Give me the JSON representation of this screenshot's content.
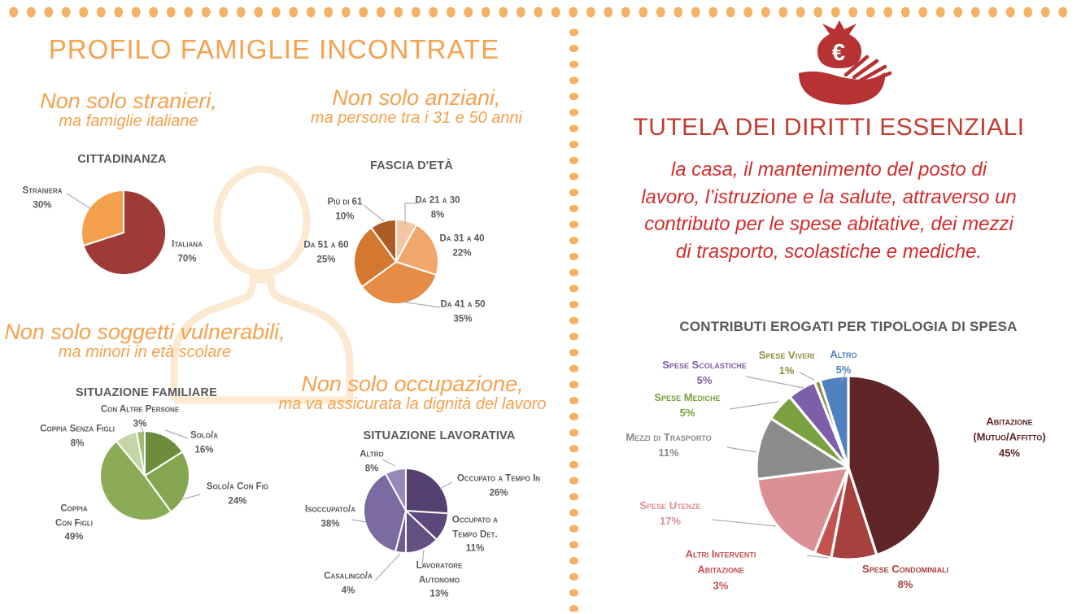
{
  "colors": {
    "orange": "#F5A14E",
    "dot": "#F4B267",
    "red-title": "#C23B30",
    "red-text": "#D22C2C",
    "icon-red": "#B73232",
    "chart-text": "#595959",
    "leader": "#ADADAD",
    "silhouette": "#FBE9D2"
  },
  "left": {
    "title": "PROFILO FAMIGLIE INCONTRATE",
    "annotations": [
      {
        "line1": "Non solo stranieri,",
        "line2": "ma famiglie italiane"
      },
      {
        "line1": "Non solo anziani,",
        "line2": "ma persone tra i 31 e 50 anni"
      },
      {
        "line1": "Non solo soggetti vulnerabili,",
        "line2": "ma minori in età scolare"
      },
      {
        "line1": "Non solo occupazione,",
        "line2": "ma va assicurata la dignità del lavoro"
      }
    ]
  },
  "right": {
    "icon_glyph": "€",
    "title": "TUTELA DEI DIRITTI ESSENZIALI",
    "paragraph": "la casa, il mantenimento del posto di\nlavoro, l’istruzione e la salute, attraverso un\ncontributo per le spese abitative, dei mezzi\ndi trasporto, scolastiche e mediche."
  },
  "chart_data": [
    {
      "type": "pie",
      "title": "CITTADINANZA",
      "slices": [
        {
          "label": "Italiana",
          "pct": "70%",
          "value": 70,
          "color": "#9E3B38"
        },
        {
          "label": "Straniera",
          "pct": "30%",
          "value": 30,
          "color": "#F5A04C"
        }
      ]
    },
    {
      "type": "pie",
      "title": "FASCIA D'ETÀ",
      "slices": [
        {
          "label": "Da 21 a 30",
          "pct": "8%",
          "value": 8,
          "color": "#F3C5A2"
        },
        {
          "label": "Da 31 a 40",
          "pct": "22%",
          "value": 22,
          "color": "#F1A66C"
        },
        {
          "label": "Da 41 a 50",
          "pct": "35%",
          "value": 35,
          "color": "#E68C44"
        },
        {
          "label": "Da 51 a 60",
          "pct": "25%",
          "value": 25,
          "color": "#D4772F"
        },
        {
          "label": "Più di 61",
          "pct": "10%",
          "value": 10,
          "color": "#AC5B27"
        }
      ]
    },
    {
      "type": "pie",
      "title": "SITUAZIONE FAMILIARE",
      "slices": [
        {
          "label": "Solo/a",
          "pct": "16%",
          "value": 16,
          "color": "#6D8C3E"
        },
        {
          "label": "Solo/a Con Fig",
          "pct": "24%",
          "value": 24,
          "color": "#86A550"
        },
        {
          "label": "Coppia\nCon Figli",
          "pct": "49%",
          "value": 49,
          "color": "#8CAB57"
        },
        {
          "label": "Coppia Senza Figli",
          "pct": "8%",
          "value": 8,
          "color": "#C5D5A5"
        },
        {
          "label": "Con Altre Persone",
          "pct": "3%",
          "value": 3,
          "color": "#A3BC77"
        }
      ]
    },
    {
      "type": "pie",
      "title": "SITUAZIONE LAVORATIVA",
      "slices": [
        {
          "label": "Occupato a Tempo In",
          "pct": "26%",
          "value": 26,
          "color": "#55416F"
        },
        {
          "label": "Occupato a\nTempo Det.",
          "pct": "11%",
          "value": 11,
          "color": "#5D487B"
        },
        {
          "label": "Lavoratore\nAutonomo",
          "pct": "13%",
          "value": 13,
          "color": "#635181"
        },
        {
          "label": "Casalingo/a",
          "pct": "4%",
          "value": 4,
          "color": "#6D5C8E"
        },
        {
          "label": "Isoccupato/a",
          "pct": "38%",
          "value": 38,
          "color": "#7C6BA1"
        },
        {
          "label": "Altro",
          "pct": "8%",
          "value": 8,
          "color": "#968AB9"
        }
      ]
    },
    {
      "type": "pie",
      "title": "CONTRIBUTI EROGATI PER TIPOLOGIA DI SPESA",
      "slices": [
        {
          "label": "Abitazione\n(Mutuo/Affitto)",
          "pct": "45%",
          "value": 45,
          "color": "#5F2527"
        },
        {
          "label": "Spese Condominiali",
          "pct": "8%",
          "value": 8,
          "color": "#A6413D"
        },
        {
          "label": "Altri Interventi\nAbitazione",
          "pct": "3%",
          "value": 3,
          "color": "#C4524E"
        },
        {
          "label": "Spese Utenze",
          "pct": "17%",
          "value": 17,
          "color": "#DA9094"
        },
        {
          "label": "Mezzi di Trasporto",
          "pct": "11%",
          "value": 11,
          "color": "#8B8B8B"
        },
        {
          "label": "Spese Mediche",
          "pct": "5%",
          "value": 5,
          "color": "#7AA03F"
        },
        {
          "label": "Spese Scolastiche",
          "pct": "5%",
          "value": 5,
          "color": "#7D5FA9"
        },
        {
          "label": "Spese Viveri",
          "pct": "1%",
          "value": 1,
          "color": "#8F8D3E"
        },
        {
          "label": "Altro",
          "pct": "5%",
          "value": 5,
          "color": "#4E81BD"
        }
      ]
    }
  ]
}
